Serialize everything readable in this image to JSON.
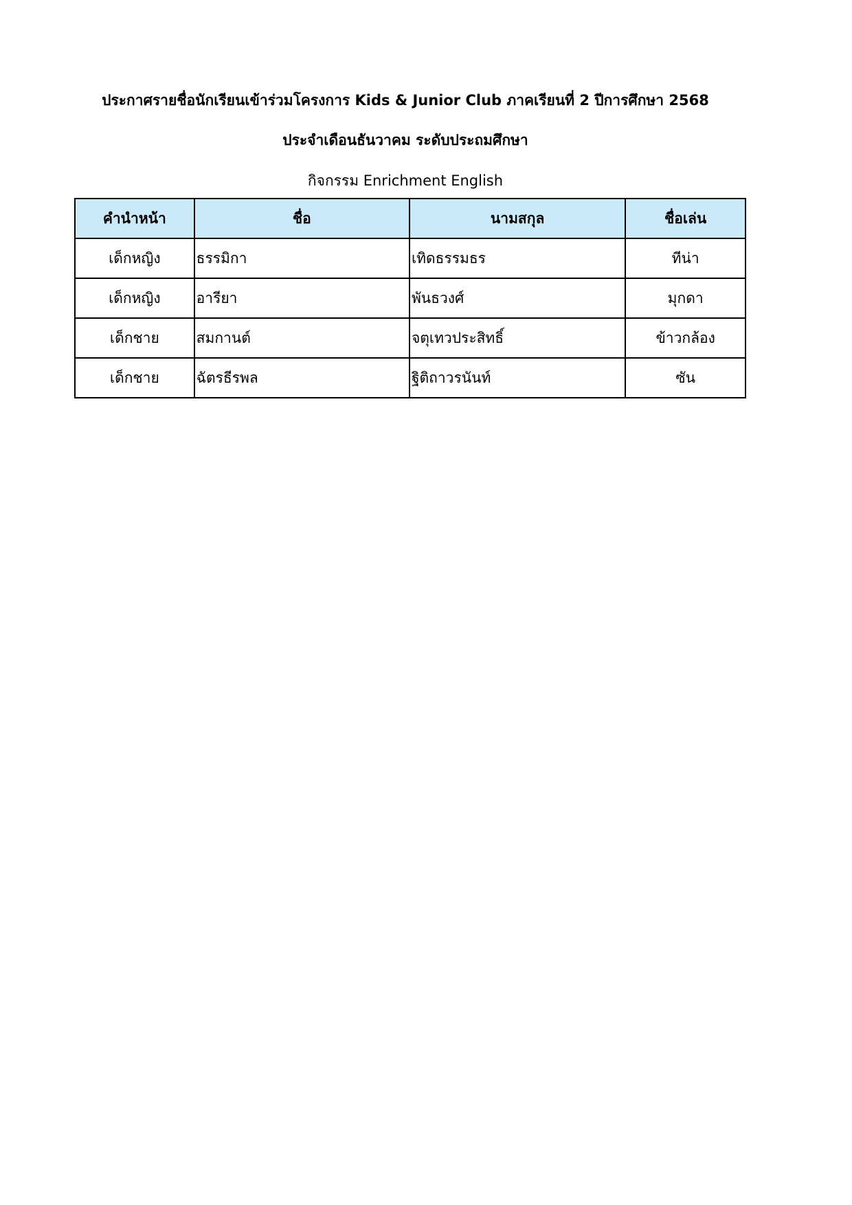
{
  "header": {
    "title": "ประกาศรายชื่อนักเรียนเข้าร่วมโครงการ Kids & Junior Club ภาคเรียนที่ 2 ปีการศึกษา 2568",
    "subtitle": "ประจำเดือนธันวาคม ระดับประถมศึกษา",
    "activity": "กิจกรรม Enrichment English"
  },
  "table": {
    "columns": [
      "คำนำหน้า",
      "ชื่อ",
      "นามสกุล",
      "ชื่อเล่น"
    ],
    "rows": [
      [
        "เด็กหญิง",
        "ธรรมิกา",
        "เทิดธรรมธร",
        "ทีน่า"
      ],
      [
        "เด็กหญิง",
        "อารียา",
        "พันธวงศ์",
        "มุกดา"
      ],
      [
        "เด็กชาย",
        "สมกานต์",
        "จตุเทวประสิทธิ์",
        "ข้าวกล้อง"
      ],
      [
        "เด็กชาย",
        "ฉัตรธีรพล",
        "ฐิติถาวรนันท์",
        "ซัน"
      ]
    ],
    "header_color": "#c9eaf8"
  }
}
